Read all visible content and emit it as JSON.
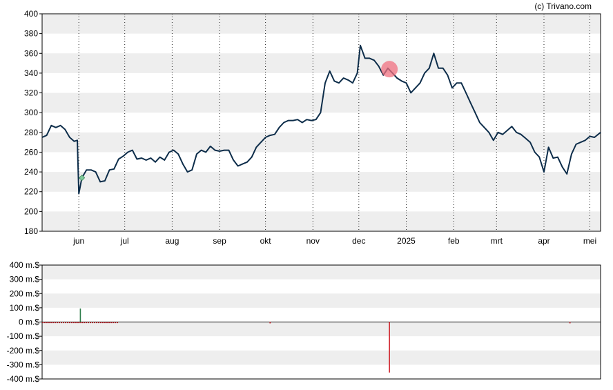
{
  "credit": "(c) Trivano.com",
  "colors": {
    "price_line": "#0d2d4a",
    "band": "#eeeeee",
    "buy_bar": "#2e7d4a",
    "sell_bar": "#d0262e",
    "highlight": "#f07080",
    "buy_marker": "#7fc99a"
  },
  "chart_data": [
    {
      "type": "line",
      "ylim": [
        180,
        400
      ],
      "y_ticks": [
        "180",
        "200",
        "220",
        "240",
        "260",
        "280",
        "300",
        "320",
        "340",
        "360",
        "380",
        "400"
      ],
      "x_ticks": [
        {
          "label": "jun",
          "x": "2024-06-01"
        },
        {
          "label": "jul",
          "x": "2024-07-01"
        },
        {
          "label": "aug",
          "x": "2024-08-01"
        },
        {
          "label": "sep",
          "x": "2024-09-01"
        },
        {
          "label": "okt",
          "x": "2024-10-01"
        },
        {
          "label": "nov",
          "x": "2024-11-01"
        },
        {
          "label": "dec",
          "x": "2024-12-01"
        },
        {
          "label": "2025",
          "x": "2025-01-01"
        },
        {
          "label": "feb",
          "x": "2025-02-01"
        },
        {
          "label": "mrt",
          "x": "2025-03-01"
        },
        {
          "label": "apr",
          "x": "2025-04-01"
        },
        {
          "label": "mei",
          "x": "2025-05-01"
        }
      ],
      "x_range": [
        "2024-05-08",
        "2025-05-08"
      ],
      "grid": "vertical dotted at month ticks, horizontal alternating bands",
      "series": [
        {
          "x": [
            "2024-05-08",
            "2024-05-11",
            "2024-05-14",
            "2024-05-17",
            "2024-05-20",
            "2024-05-23",
            "2024-05-26",
            "2024-05-29",
            "2024-05-31",
            "2024-06-01",
            "2024-06-03",
            "2024-06-06",
            "2024-06-09",
            "2024-06-12",
            "2024-06-15",
            "2024-06-18",
            "2024-06-21",
            "2024-06-24",
            "2024-06-27",
            "2024-06-30",
            "2024-07-03",
            "2024-07-06",
            "2024-07-09",
            "2024-07-12",
            "2024-07-15",
            "2024-07-18",
            "2024-07-21",
            "2024-07-24",
            "2024-07-27",
            "2024-07-30",
            "2024-08-02",
            "2024-08-05",
            "2024-08-08",
            "2024-08-11",
            "2024-08-14",
            "2024-08-17",
            "2024-08-20",
            "2024-08-23",
            "2024-08-26",
            "2024-08-29",
            "2024-09-01",
            "2024-09-04",
            "2024-09-07",
            "2024-09-10",
            "2024-09-13",
            "2024-09-16",
            "2024-09-19",
            "2024-09-22",
            "2024-09-25",
            "2024-09-28",
            "2024-10-01",
            "2024-10-04",
            "2024-10-07",
            "2024-10-10",
            "2024-10-13",
            "2024-10-16",
            "2024-10-19",
            "2024-10-22",
            "2024-10-25",
            "2024-10-28",
            "2024-10-31",
            "2024-11-03",
            "2024-11-06",
            "2024-11-09",
            "2024-11-12",
            "2024-11-15",
            "2024-11-18",
            "2024-11-21",
            "2024-11-24",
            "2024-11-27",
            "2024-11-30",
            "2024-12-02",
            "2024-12-05",
            "2024-12-08",
            "2024-12-11",
            "2024-12-14",
            "2024-12-17",
            "2024-12-20",
            "2024-12-23",
            "2024-12-26",
            "2024-12-29",
            "2025-01-01",
            "2025-01-04",
            "2025-01-07",
            "2025-01-10",
            "2025-01-13",
            "2025-01-16",
            "2025-01-19",
            "2025-01-22",
            "2025-01-25",
            "2025-01-28",
            "2025-01-31",
            "2025-02-03",
            "2025-02-06",
            "2025-02-09",
            "2025-02-12",
            "2025-02-15",
            "2025-02-18",
            "2025-02-21",
            "2025-02-24",
            "2025-02-27",
            "2025-03-02",
            "2025-03-05",
            "2025-03-08",
            "2025-03-11",
            "2025-03-14",
            "2025-03-17",
            "2025-03-20",
            "2025-03-23",
            "2025-03-26",
            "2025-03-29",
            "2025-04-01",
            "2025-04-04",
            "2025-04-07",
            "2025-04-10",
            "2025-04-13",
            "2025-04-16",
            "2025-04-19",
            "2025-04-22",
            "2025-04-25",
            "2025-04-28",
            "2025-05-01",
            "2025-05-04",
            "2025-05-08"
          ],
          "y": [
            275,
            277,
            287,
            285,
            287,
            283,
            275,
            271,
            272,
            218,
            234,
            242,
            242,
            240,
            230,
            231,
            242,
            243,
            253,
            256,
            260,
            262,
            253,
            254,
            252,
            254,
            250,
            255,
            252,
            260,
            262,
            258,
            248,
            240,
            242,
            258,
            262,
            260,
            266,
            262,
            261,
            262,
            262,
            252,
            246,
            248,
            250,
            255,
            265,
            270,
            275,
            277,
            278,
            285,
            290,
            292,
            292,
            293,
            290,
            293,
            292,
            293,
            300,
            330,
            342,
            332,
            330,
            335,
            333,
            330,
            340,
            368,
            355,
            355,
            353,
            347,
            338,
            345,
            340,
            335,
            332,
            330,
            320,
            325,
            330,
            340,
            345,
            360,
            345,
            345,
            338,
            325,
            330,
            330,
            320,
            310,
            300,
            290,
            285,
            280,
            272,
            280,
            278,
            282,
            286,
            280,
            278,
            274,
            270,
            260,
            255,
            240,
            265,
            254,
            255,
            245,
            238,
            258,
            268,
            270,
            272,
            276,
            275,
            280
          ]
        }
      ],
      "annotations": [
        {
          "type": "buy",
          "x": "2024-06-03",
          "y": 234
        },
        {
          "type": "sell",
          "x": "2024-12-21",
          "y": 344
        }
      ]
    },
    {
      "type": "bar",
      "ylim": [
        -400,
        400
      ],
      "y_ticks": [
        "-400 m.$",
        "-300 m.$",
        "-200 m.$",
        "-100 m.$",
        "0 m.$",
        "100 m.$",
        "200 m.$",
        "300 m.$",
        "400 m.$"
      ],
      "x_range": [
        "2024-05-08",
        "2025-05-08"
      ],
      "bars": [
        {
          "x": "2024-06-02",
          "value": 95
        },
        {
          "x": "2024-10-04",
          "value": -4
        },
        {
          "x": "2024-12-21",
          "value": -355
        },
        {
          "x": "2025-04-18",
          "value": -3
        }
      ],
      "baseline_dashes": {
        "from": "2024-05-08",
        "to": "2024-06-27"
      }
    }
  ]
}
